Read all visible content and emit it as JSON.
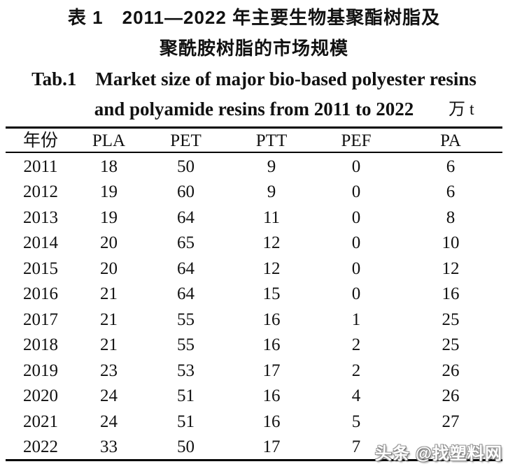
{
  "page": {
    "title_cn_line1": "表 1　2011—2022 年主要生物基聚酯树脂及",
    "title_cn_line2": "聚酰胺树脂的市场规模",
    "title_en_line1": "Tab.1　Market size of major bio-based polyester resins",
    "title_en_line2": "and polyamide resins from 2011 to 2022",
    "unit_label": "万 t"
  },
  "table": {
    "columns": [
      "年份",
      "PLA",
      "PET",
      "PTT",
      "PEF",
      "PA"
    ],
    "rows": [
      [
        "2011",
        "18",
        "50",
        "9",
        "0",
        "6"
      ],
      [
        "2012",
        "19",
        "60",
        "9",
        "0",
        "6"
      ],
      [
        "2013",
        "19",
        "64",
        "11",
        "0",
        "8"
      ],
      [
        "2014",
        "20",
        "65",
        "12",
        "0",
        "10"
      ],
      [
        "2015",
        "20",
        "64",
        "12",
        "0",
        "12"
      ],
      [
        "2016",
        "21",
        "64",
        "15",
        "0",
        "16"
      ],
      [
        "2017",
        "21",
        "55",
        "16",
        "1",
        "25"
      ],
      [
        "2018",
        "21",
        "55",
        "16",
        "2",
        "25"
      ],
      [
        "2019",
        "23",
        "53",
        "17",
        "2",
        "26"
      ],
      [
        "2020",
        "24",
        "51",
        "16",
        "4",
        "26"
      ],
      [
        "2021",
        "24",
        "51",
        "16",
        "5",
        "27"
      ],
      [
        "2022",
        "33",
        "50",
        "17",
        "7",
        ""
      ]
    ]
  },
  "watermark": "头条 @找塑料网",
  "colors": {
    "background": "#ffffff",
    "text": "#111111",
    "rule": "#000000",
    "watermark_fill": "#fdfdfd"
  }
}
